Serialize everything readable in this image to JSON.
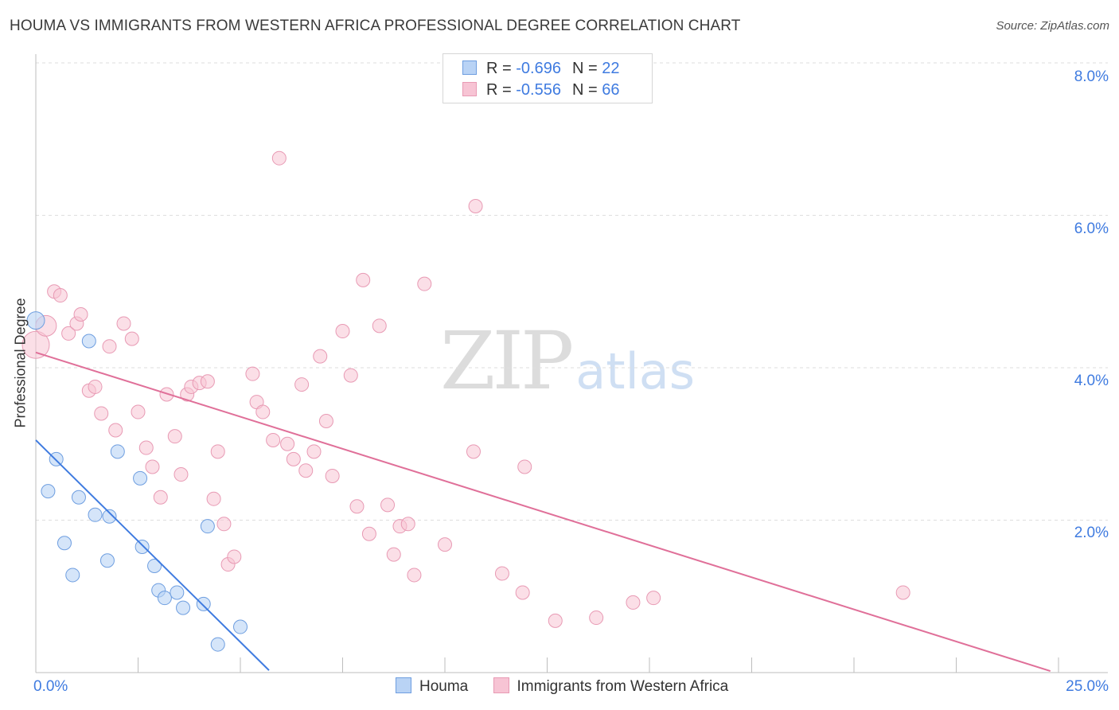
{
  "title": "HOUMA VS IMMIGRANTS FROM WESTERN AFRICA PROFESSIONAL DEGREE CORRELATION CHART",
  "source": "Source: ZipAtlas.com",
  "watermark": {
    "zip": "ZIP",
    "atlas": "atlas"
  },
  "colors": {
    "houma": "#3f7be0",
    "houma_fill": "#b9d3f5",
    "waf": "#e07099",
    "waf_fill": "#f7c4d4",
    "tick": "#3f7be0",
    "grid": "#dedede"
  },
  "legend_top": {
    "houma": {
      "r_label": "R = ",
      "r_value": "-0.696",
      "n_label": "N = ",
      "n_value": "22"
    },
    "waf": {
      "r_label": "R = ",
      "r_value": "-0.556",
      "n_label": "N = ",
      "n_value": "66"
    }
  },
  "legend_bottom": {
    "houma": "Houma",
    "waf": "Immigrants from Western Africa"
  },
  "axis": {
    "ylabel": "Professional Degree",
    "x_min_label": "0.0%",
    "x_max_label": "25.0%",
    "y_ticks": [
      "2.0%",
      "4.0%",
      "6.0%",
      "8.0%"
    ]
  },
  "chart_data": {
    "type": "scatter",
    "title": "HOUMA VS IMMIGRANTS FROM WESTERN AFRICA PROFESSIONAL DEGREE CORRELATION CHART",
    "xlabel": "",
    "ylabel": "Professional Degree",
    "xlim": [
      0,
      25
    ],
    "ylim": [
      0,
      8.3
    ],
    "y_ticks": [
      2,
      4,
      6,
      8
    ],
    "series": [
      {
        "name": "Houma",
        "r": -0.696,
        "n": 22,
        "trend": [
          [
            0.0,
            3.05
          ],
          [
            5.7,
            0.03
          ]
        ],
        "points": [
          [
            0.0,
            4.62
          ],
          [
            1.3,
            4.35
          ],
          [
            0.5,
            2.8
          ],
          [
            0.3,
            2.38
          ],
          [
            1.05,
            2.3
          ],
          [
            2.0,
            2.9
          ],
          [
            2.55,
            2.55
          ],
          [
            1.45,
            2.07
          ],
          [
            1.8,
            2.05
          ],
          [
            0.7,
            1.7
          ],
          [
            1.75,
            1.47
          ],
          [
            2.6,
            1.65
          ],
          [
            4.2,
            1.92
          ],
          [
            0.9,
            1.28
          ],
          [
            2.9,
            1.4
          ],
          [
            3.0,
            1.08
          ],
          [
            3.15,
            0.98
          ],
          [
            3.45,
            1.05
          ],
          [
            3.6,
            0.85
          ],
          [
            4.1,
            0.9
          ],
          [
            5.0,
            0.6
          ],
          [
            4.45,
            0.37
          ]
        ]
      },
      {
        "name": "Immigrants from Western Africa",
        "r": -0.556,
        "n": 66,
        "trend": [
          [
            0.0,
            4.2
          ],
          [
            24.8,
            0.02
          ]
        ],
        "points": [
          [
            0.0,
            4.3
          ],
          [
            0.25,
            4.55
          ],
          [
            0.45,
            5.0
          ],
          [
            0.6,
            4.95
          ],
          [
            0.8,
            4.45
          ],
          [
            1.0,
            4.58
          ],
          [
            1.1,
            4.7
          ],
          [
            1.3,
            3.7
          ],
          [
            1.45,
            3.75
          ],
          [
            1.6,
            3.4
          ],
          [
            1.8,
            4.28
          ],
          [
            1.95,
            3.18
          ],
          [
            2.15,
            4.58
          ],
          [
            2.35,
            4.38
          ],
          [
            2.5,
            3.42
          ],
          [
            2.7,
            2.95
          ],
          [
            2.85,
            2.7
          ],
          [
            3.05,
            2.3
          ],
          [
            3.2,
            3.65
          ],
          [
            3.4,
            3.1
          ],
          [
            3.55,
            2.6
          ],
          [
            3.7,
            3.65
          ],
          [
            3.8,
            3.75
          ],
          [
            4.0,
            3.8
          ],
          [
            4.2,
            3.82
          ],
          [
            4.35,
            2.28
          ],
          [
            4.45,
            2.9
          ],
          [
            4.6,
            1.95
          ],
          [
            4.7,
            1.42
          ],
          [
            4.85,
            1.52
          ],
          [
            5.3,
            3.92
          ],
          [
            5.4,
            3.55
          ],
          [
            5.55,
            3.42
          ],
          [
            5.8,
            3.05
          ],
          [
            5.95,
            6.75
          ],
          [
            6.15,
            3.0
          ],
          [
            6.3,
            2.8
          ],
          [
            6.5,
            3.78
          ],
          [
            6.6,
            2.65
          ],
          [
            6.8,
            2.9
          ],
          [
            6.95,
            4.15
          ],
          [
            7.1,
            3.3
          ],
          [
            7.25,
            2.58
          ],
          [
            7.5,
            4.48
          ],
          [
            7.7,
            3.9
          ],
          [
            7.85,
            2.18
          ],
          [
            8.0,
            5.15
          ],
          [
            8.15,
            1.82
          ],
          [
            8.4,
            4.55
          ],
          [
            8.6,
            2.2
          ],
          [
            8.75,
            1.55
          ],
          [
            8.9,
            1.92
          ],
          [
            9.1,
            1.95
          ],
          [
            9.25,
            1.28
          ],
          [
            9.5,
            5.1
          ],
          [
            10.0,
            1.68
          ],
          [
            10.7,
            2.9
          ],
          [
            10.75,
            6.12
          ],
          [
            11.4,
            1.3
          ],
          [
            11.95,
            2.7
          ],
          [
            11.9,
            1.05
          ],
          [
            12.7,
            0.68
          ],
          [
            13.7,
            0.72
          ],
          [
            14.6,
            0.92
          ],
          [
            15.1,
            0.98
          ],
          [
            21.2,
            1.05
          ]
        ]
      }
    ]
  }
}
